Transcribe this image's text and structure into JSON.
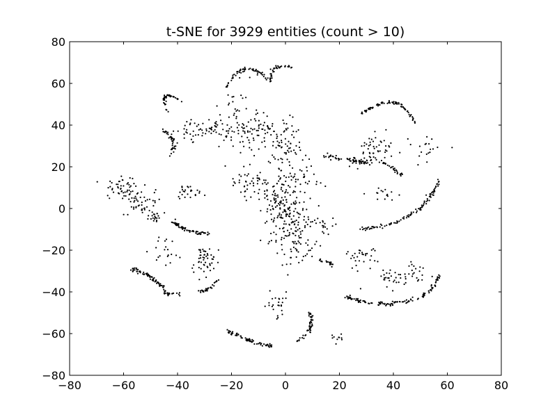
{
  "chart_data": {
    "type": "scatter",
    "title": "t-SNE for 3929 entities (count > 10)",
    "xlabel": "",
    "ylabel": "",
    "xlim": [
      -80,
      80
    ],
    "ylim": [
      -80,
      80
    ],
    "xticks": [
      -80,
      -60,
      -40,
      -20,
      0,
      20,
      40,
      60,
      80
    ],
    "yticks": [
      -80,
      -60,
      -40,
      -20,
      0,
      20,
      40,
      60,
      80
    ],
    "xtick_labels": [
      "−80",
      "−60",
      "−40",
      "−20",
      "0",
      "20",
      "40",
      "60",
      "80"
    ],
    "ytick_labels": [
      "−80",
      "−60",
      "−40",
      "−20",
      "0",
      "20",
      "40",
      "60",
      "80"
    ],
    "grid": false,
    "marker_color": "#000000",
    "clusters": [
      {
        "x": -44,
        "y": 47,
        "kind": "arc",
        "x2": -38,
        "y2": 51,
        "r": 6,
        "n": 40
      },
      {
        "x": -46,
        "y": 38,
        "kind": "arc",
        "x2": -43,
        "y2": 25,
        "r": 3,
        "n": 40
      },
      {
        "x": -22,
        "y": 58,
        "kind": "arc",
        "x2": -5,
        "y2": 60,
        "r": 8,
        "n": 60
      },
      {
        "x": -5,
        "y": 60,
        "kind": "arc",
        "x2": 2,
        "y2": 68,
        "r": 4,
        "n": 35
      },
      {
        "x": -30,
        "y": 38,
        "kind": "blob",
        "sx": 6,
        "sy": 3,
        "n": 60
      },
      {
        "x": -12,
        "y": 38,
        "kind": "blob",
        "sx": 6,
        "sy": 4,
        "n": 80
      },
      {
        "x": -18,
        "y": 47,
        "kind": "blob",
        "sx": 3,
        "sy": 6,
        "n": 30
      },
      {
        "x": 0,
        "y": 30,
        "kind": "blob",
        "sx": 4,
        "sy": 7,
        "n": 70
      },
      {
        "x": 4,
        "y": 15,
        "kind": "blob",
        "sx": 4,
        "sy": 5,
        "n": 50
      },
      {
        "x": -15,
        "y": 12,
        "kind": "blob",
        "sx": 4,
        "sy": 4,
        "n": 40
      },
      {
        "x": -6,
        "y": 8,
        "kind": "blob",
        "sx": 3,
        "sy": 5,
        "n": 40
      },
      {
        "x": 1,
        "y": -5,
        "kind": "blob",
        "sx": 4,
        "sy": 9,
        "n": 150
      },
      {
        "x": 5,
        "y": -18,
        "kind": "blob",
        "sx": 3,
        "sy": 5,
        "n": 50
      },
      {
        "x": 12,
        "y": -25,
        "kind": "arc",
        "x2": 18,
        "y2": -28,
        "r": 1,
        "n": 20
      },
      {
        "x": 13,
        "y": -8,
        "kind": "blob",
        "sx": 3,
        "sy": 3,
        "n": 20
      },
      {
        "x": -61,
        "y": 10,
        "kind": "blob",
        "sx": 3,
        "sy": 2.5,
        "n": 50
      },
      {
        "x": -53,
        "y": 2,
        "kind": "blob",
        "sx": 3,
        "sy": 3,
        "n": 45
      },
      {
        "x": -48,
        "y": -4,
        "kind": "blob",
        "sx": 1.5,
        "sy": 1.5,
        "n": 20
      },
      {
        "x": -42,
        "y": -6,
        "kind": "arc",
        "x2": -27,
        "y2": -12,
        "r": -2,
        "n": 70
      },
      {
        "x": -36,
        "y": 8,
        "kind": "blob",
        "sx": 4,
        "sy": 2,
        "n": 25
      },
      {
        "x": -57,
        "y": -29,
        "kind": "arc",
        "x2": -44,
        "y2": -41,
        "r": 2,
        "n": 70
      },
      {
        "x": -44,
        "y": -41,
        "kind": "arc",
        "x2": -39,
        "y2": -41,
        "r": 0,
        "n": 15
      },
      {
        "x": -30,
        "y": -25,
        "kind": "blob",
        "sx": 2.5,
        "sy": 4,
        "n": 50
      },
      {
        "x": -32,
        "y": -40,
        "kind": "arc",
        "x2": -25,
        "y2": -34,
        "r": -1,
        "n": 30
      },
      {
        "x": -44,
        "y": -20,
        "kind": "blob",
        "sx": 3,
        "sy": 4,
        "n": 20
      },
      {
        "x": -22,
        "y": -58,
        "kind": "arc",
        "x2": -5,
        "y2": -66,
        "r": -1,
        "n": 70
      },
      {
        "x": 3,
        "y": -64,
        "kind": "arc",
        "x2": 9,
        "y2": -50,
        "r": -3,
        "n": 50
      },
      {
        "x": -4,
        "y": -46,
        "kind": "blob",
        "sx": 3,
        "sy": 3,
        "n": 25
      },
      {
        "x": 20,
        "y": -62,
        "kind": "blob",
        "sx": 1.5,
        "sy": 1.5,
        "n": 10
      },
      {
        "x": 28,
        "y": 45,
        "kind": "arc",
        "x2": 48,
        "y2": 41,
        "r": 8,
        "n": 80
      },
      {
        "x": 34,
        "y": 30,
        "kind": "blob",
        "sx": 3,
        "sy": 3,
        "n": 40
      },
      {
        "x": 14,
        "y": 25,
        "kind": "arc",
        "x2": 30,
        "y2": 22,
        "r": 0,
        "n": 50
      },
      {
        "x": 30,
        "y": 23,
        "kind": "blob",
        "sx": 4,
        "sy": 2,
        "n": 30
      },
      {
        "x": 36,
        "y": 22,
        "kind": "arc",
        "x2": 44,
        "y2": 16,
        "r": 0,
        "n": 25
      },
      {
        "x": 26,
        "y": -10,
        "kind": "arc",
        "x2": 57,
        "y2": 14,
        "r": -7,
        "n": 100
      },
      {
        "x": 36,
        "y": 7,
        "kind": "blob",
        "sx": 3,
        "sy": 1.5,
        "n": 15
      },
      {
        "x": 51,
        "y": 28,
        "kind": "blob",
        "sx": 4,
        "sy": 4,
        "n": 20
      },
      {
        "x": 29,
        "y": -24,
        "kind": "blob",
        "sx": 3,
        "sy": 3,
        "n": 30
      },
      {
        "x": 40,
        "y": -33,
        "kind": "blob",
        "sx": 4,
        "sy": 3,
        "n": 30
      },
      {
        "x": 22,
        "y": -42,
        "kind": "arc",
        "x2": 40,
        "y2": -46,
        "r": -1,
        "n": 60
      },
      {
        "x": 40,
        "y": -45,
        "kind": "arc",
        "x2": 57,
        "y2": -32,
        "r": -4,
        "n": 60
      },
      {
        "x": 47,
        "y": -30,
        "kind": "blob",
        "sx": 3,
        "sy": 3,
        "n": 20
      }
    ]
  }
}
